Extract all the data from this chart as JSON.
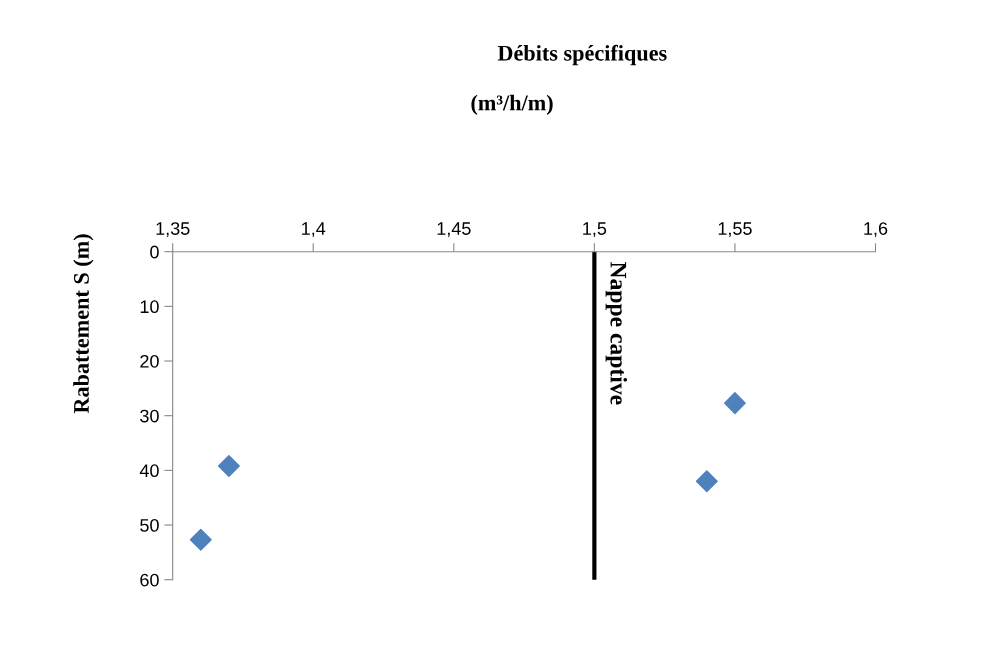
{
  "chart_data": {
    "type": "scatter",
    "title": "Débits spécifiques",
    "xlabel": "(m³/h/m)",
    "ylabel": "Rabattement S (m)",
    "x": [
      1.36,
      1.37,
      1.54,
      1.55
    ],
    "series": [
      {
        "color": "#4f81bd",
        "values": [
          52.7,
          39.2,
          42.0,
          27.7
        ]
      }
    ],
    "marker": "diamond",
    "grid": false,
    "legend": false,
    "xlim": [
      1.35,
      1.6
    ],
    "xticks": [
      {
        "value": 1.35,
        "label": "1,35"
      },
      {
        "value": 1.4,
        "label": "1,4"
      },
      {
        "value": 1.45,
        "label": "1,45"
      },
      {
        "value": 1.5,
        "label": "1,5"
      },
      {
        "value": 1.55,
        "label": "1,55"
      },
      {
        "value": 1.6,
        "label": "1,6"
      }
    ],
    "ylim": [
      60,
      0
    ],
    "yticks": [
      0,
      10,
      20,
      30,
      40,
      50,
      60
    ],
    "ref_lines": [
      {
        "axis": "x",
        "value": 1.5,
        "label": "Nappe captive",
        "color": "#000000"
      }
    ]
  }
}
